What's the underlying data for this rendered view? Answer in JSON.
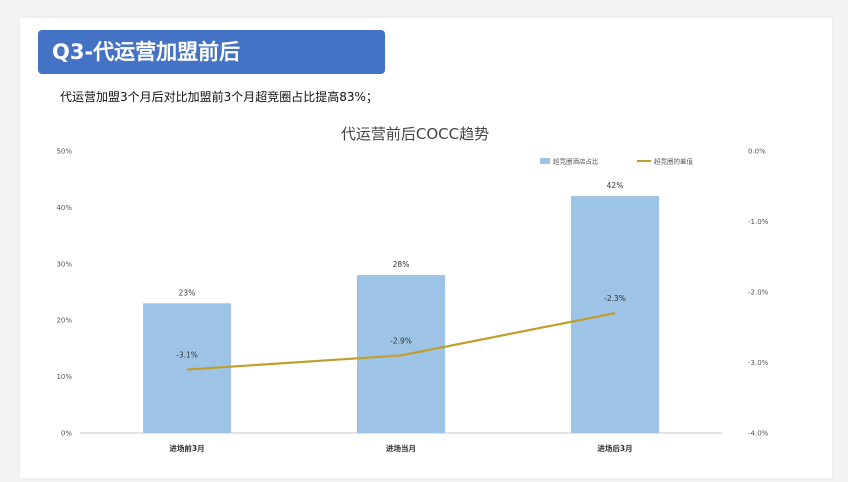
{
  "slide": {
    "title": "Q3-代运营加盟前后",
    "subtitle": "代运营加盟3个月后对比加盟前3个月超竞圈占比提高83%；"
  },
  "chart_data": {
    "type": "bar",
    "title": "代运营前后COCC趋势",
    "categories": [
      "进场前3月",
      "进场当月",
      "进场后3月"
    ],
    "series": [
      {
        "name": "超竞圈酒店占比",
        "type": "bar",
        "axis": "left",
        "values": [
          23,
          28,
          42
        ],
        "labels": [
          "23%",
          "28%",
          "42%"
        ],
        "color": "#9dc3e6"
      },
      {
        "name": "超竞圈的差值",
        "type": "line",
        "axis": "right",
        "values": [
          -3.1,
          -2.9,
          -2.3
        ],
        "labels": [
          "-3.1%",
          "-2.9%",
          "-2.3%"
        ],
        "color": "#bf9f2a"
      }
    ],
    "y_left": {
      "min": 0,
      "max": 50,
      "ticks": [
        0,
        10,
        20,
        30,
        40,
        50
      ],
      "tick_labels": [
        "0%",
        "10%",
        "20%",
        "30%",
        "40%",
        "50%"
      ]
    },
    "y_right": {
      "min": -4.0,
      "max": 0.0,
      "ticks": [
        0.0,
        -1.0,
        -2.0,
        -3.0,
        -4.0
      ],
      "tick_labels": [
        "0.0%",
        "-1.0%",
        "-2.0%",
        "-3.0%",
        "-4.0%"
      ]
    },
    "legend_position": "top-right",
    "grid": false
  }
}
